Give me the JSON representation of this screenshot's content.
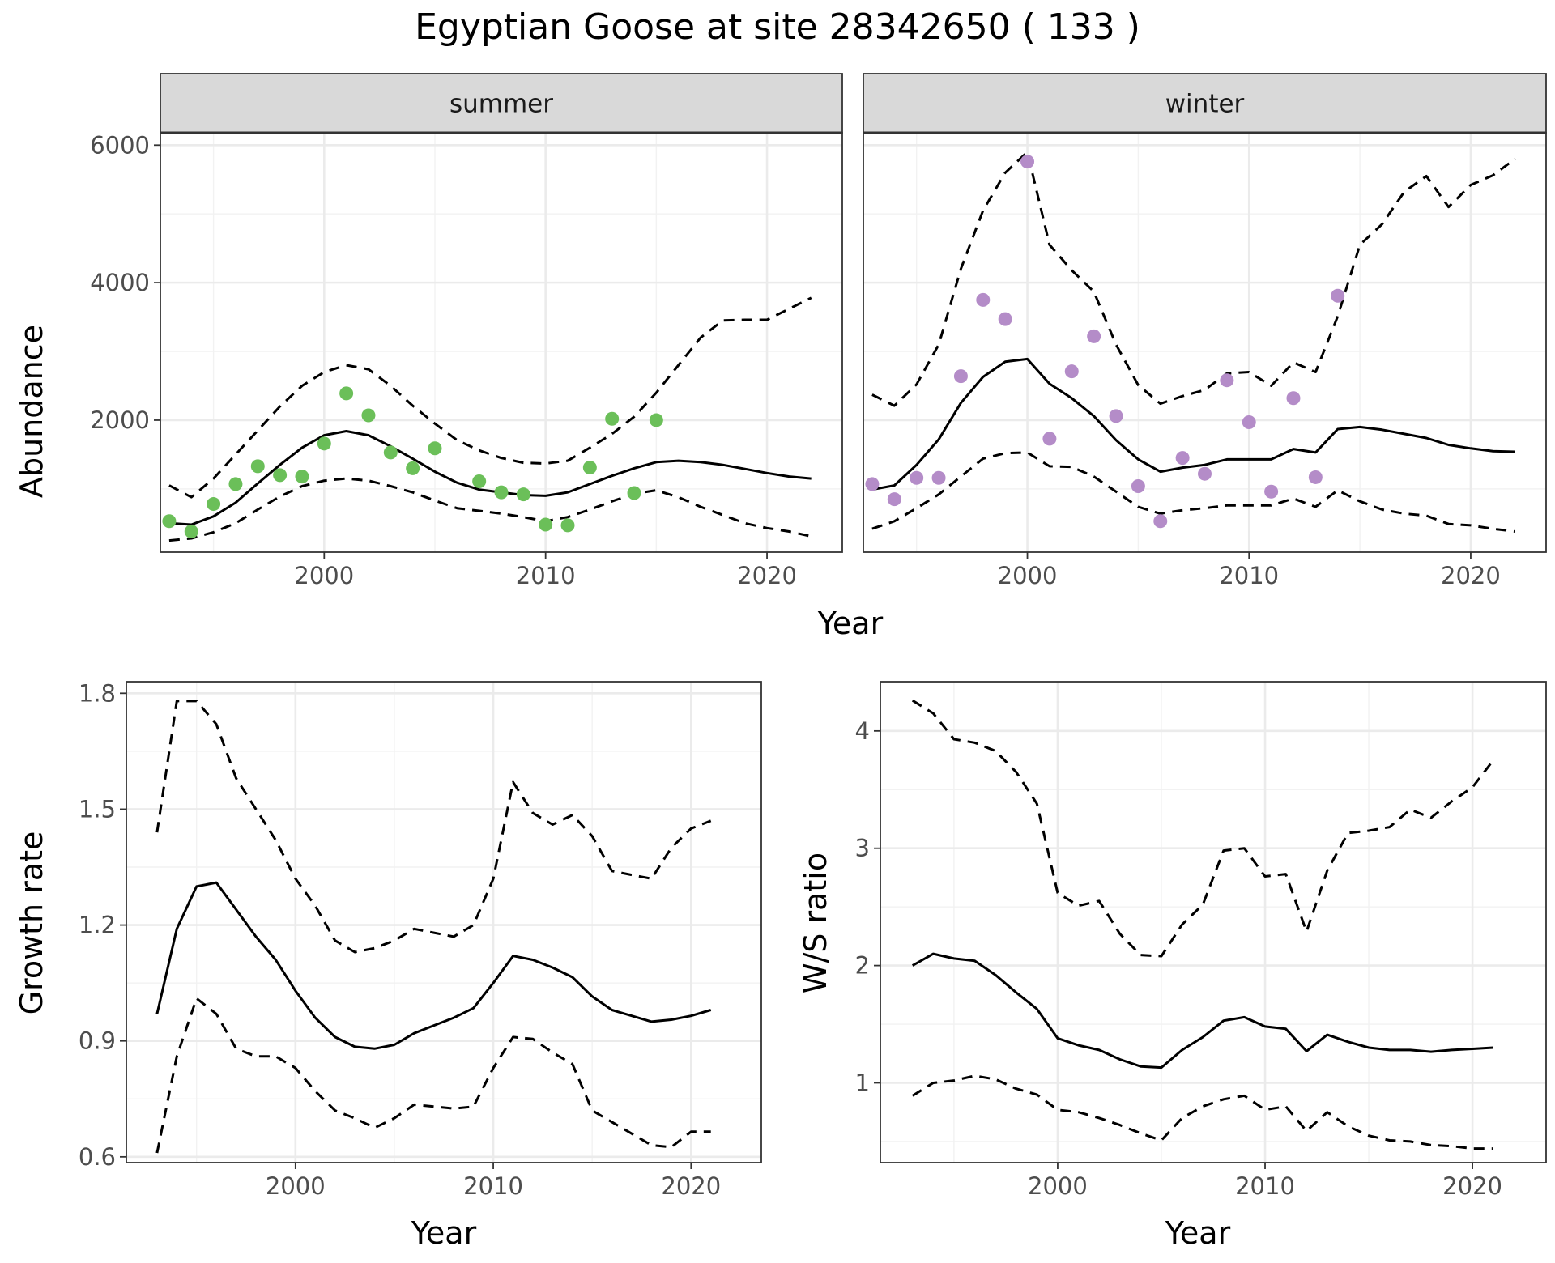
{
  "chart_data": [
    {
      "type": "line",
      "title": "Egyptian Goose at site 28342650 ( 133 )",
      "facet": "summer",
      "xlabel": "Year",
      "ylabel": "Abundance",
      "xlim": [
        1992.6,
        2023.4
      ],
      "ylim": [
        80,
        6180
      ],
      "xticks": [
        2000,
        2010,
        2020
      ],
      "yticks": [
        2000,
        4000,
        6000
      ],
      "point_color": "#6BBF59",
      "points": {
        "x": [
          1993,
          1994,
          1995,
          1996,
          1997,
          1998,
          1999,
          2000,
          2001,
          2002,
          2003,
          2004,
          2005,
          2007,
          2008,
          2009,
          2010,
          2011,
          2012,
          2013,
          2014,
          2015
        ],
        "y": [
          530,
          380,
          780,
          1070,
          1330,
          1200,
          1180,
          1660,
          2390,
          2070,
          1530,
          1300,
          1590,
          1110,
          950,
          920,
          480,
          470,
          1310,
          2020,
          940,
          2000
        ]
      },
      "series": [
        {
          "role": "estimate",
          "x": [
            1993,
            1994,
            1995,
            1996,
            1997,
            1998,
            1999,
            2000,
            2001,
            2002,
            2003,
            2004,
            2005,
            2006,
            2007,
            2008,
            2009,
            2010,
            2011,
            2012,
            2013,
            2014,
            2015,
            2016,
            2017,
            2018,
            2019,
            2020,
            2021,
            2022
          ],
          "y": [
            500,
            480,
            600,
            800,
            1080,
            1350,
            1600,
            1780,
            1840,
            1780,
            1620,
            1440,
            1250,
            1090,
            990,
            950,
            910,
            900,
            950,
            1070,
            1190,
            1300,
            1390,
            1410,
            1390,
            1350,
            1290,
            1230,
            1180,
            1150
          ]
        },
        {
          "role": "upper",
          "x": [
            1993,
            1994,
            1995,
            1996,
            1997,
            1998,
            1999,
            2000,
            2001,
            2002,
            2003,
            2004,
            2005,
            2006,
            2007,
            2008,
            2009,
            2010,
            2011,
            2012,
            2013,
            2014,
            2015,
            2016,
            2017,
            2018,
            2019,
            2020,
            2021,
            2022
          ],
          "y": [
            1050,
            880,
            1150,
            1500,
            1850,
            2200,
            2500,
            2700,
            2800,
            2740,
            2500,
            2210,
            1950,
            1710,
            1560,
            1450,
            1380,
            1370,
            1410,
            1600,
            1800,
            2050,
            2400,
            2800,
            3200,
            3450,
            3460,
            3460,
            3620,
            3780
          ]
        },
        {
          "role": "lower",
          "x": [
            1993,
            1994,
            1995,
            1996,
            1997,
            1998,
            1999,
            2000,
            2001,
            2002,
            2003,
            2004,
            2005,
            2006,
            2007,
            2008,
            2009,
            2010,
            2011,
            2012,
            2013,
            2014,
            2015,
            2016,
            2017,
            2018,
            2019,
            2020,
            2021,
            2022
          ],
          "y": [
            250,
            280,
            370,
            500,
            700,
            890,
            1040,
            1120,
            1150,
            1120,
            1040,
            950,
            830,
            720,
            680,
            640,
            590,
            530,
            590,
            700,
            820,
            930,
            980,
            880,
            740,
            620,
            500,
            430,
            380,
            310
          ]
        }
      ]
    },
    {
      "type": "line",
      "facet": "winter",
      "xlim": [
        1992.6,
        2023.4
      ],
      "ylim": [
        80,
        6180
      ],
      "xticks": [
        2000,
        2010,
        2020
      ],
      "point_color": "#B48CC8",
      "points": {
        "x": [
          1993,
          1994,
          1995,
          1996,
          1997,
          1998,
          1999,
          2000,
          2001,
          2002,
          2003,
          2004,
          2005,
          2006,
          2007,
          2008,
          2009,
          2010,
          2011,
          2012,
          2013,
          2014
        ],
        "y": [
          1070,
          850,
          1160,
          1160,
          2640,
          3750,
          3470,
          5760,
          1730,
          2710,
          3220,
          2060,
          1040,
          530,
          1450,
          1220,
          2580,
          1970,
          960,
          2320,
          1170,
          3810
        ]
      },
      "series": [
        {
          "role": "estimate",
          "x": [
            1993,
            1994,
            1995,
            1996,
            1997,
            1998,
            1999,
            2000,
            2001,
            2002,
            2003,
            2004,
            2005,
            2006,
            2007,
            2008,
            2009,
            2010,
            2011,
            2012,
            2013,
            2014,
            2015,
            2016,
            2017,
            2018,
            2019,
            2020,
            2021,
            2022
          ],
          "y": [
            990,
            1050,
            1350,
            1720,
            2250,
            2630,
            2850,
            2890,
            2530,
            2320,
            2060,
            1710,
            1430,
            1250,
            1310,
            1350,
            1430,
            1430,
            1430,
            1580,
            1530,
            1870,
            1900,
            1860,
            1800,
            1740,
            1640,
            1590,
            1550,
            1540
          ]
        },
        {
          "role": "upper",
          "x": [
            1993,
            1994,
            1995,
            1996,
            1997,
            1998,
            1999,
            2000,
            2001,
            2002,
            2003,
            2004,
            2005,
            2006,
            2007,
            2008,
            2009,
            2010,
            2011,
            2012,
            2013,
            2014,
            2015,
            2016,
            2017,
            2018,
            2019,
            2020,
            2021,
            2022
          ],
          "y": [
            2370,
            2210,
            2520,
            3100,
            4200,
            5050,
            5600,
            5900,
            4550,
            4180,
            3870,
            3100,
            2510,
            2240,
            2350,
            2440,
            2680,
            2700,
            2500,
            2840,
            2700,
            3510,
            4550,
            4850,
            5320,
            5550,
            5100,
            5420,
            5560,
            5800
          ]
        },
        {
          "role": "lower",
          "x": [
            1993,
            1994,
            1995,
            1996,
            1997,
            1998,
            1999,
            2000,
            2001,
            2002,
            2003,
            2004,
            2005,
            2006,
            2007,
            2008,
            2009,
            2010,
            2011,
            2012,
            2013,
            2014,
            2015,
            2016,
            2017,
            2018,
            2019,
            2020,
            2021,
            2022
          ],
          "y": [
            420,
            530,
            720,
            920,
            1180,
            1440,
            1520,
            1530,
            1330,
            1320,
            1180,
            960,
            740,
            640,
            690,
            720,
            760,
            760,
            760,
            860,
            740,
            980,
            820,
            700,
            640,
            610,
            490,
            470,
            420,
            380
          ]
        }
      ]
    },
    {
      "type": "line",
      "xlabel": "Year",
      "ylabel": "Growth rate",
      "xlim": [
        1991.45,
        2023.55
      ],
      "ylim": [
        0.585,
        1.83
      ],
      "xticks": [
        2000,
        2010,
        2020
      ],
      "yticks": [
        0.6,
        0.9,
        1.2,
        1.5,
        1.8
      ],
      "ytick_labels": [
        "0.6",
        "0.9",
        "1.2",
        "1.5",
        "1.8"
      ],
      "series": [
        {
          "role": "estimate",
          "x": [
            1993,
            1994,
            1995,
            1996,
            1997,
            1998,
            1999,
            2000,
            2001,
            2002,
            2003,
            2004,
            2005,
            2006,
            2007,
            2008,
            2009,
            2010,
            2011,
            2012,
            2013,
            2014,
            2015,
            2016,
            2017,
            2018,
            2019,
            2020,
            2021
          ],
          "y": [
            0.97,
            1.19,
            1.3,
            1.31,
            1.24,
            1.17,
            1.11,
            1.03,
            0.96,
            0.91,
            0.885,
            0.88,
            0.89,
            0.92,
            0.94,
            0.96,
            0.985,
            1.05,
            1.12,
            1.11,
            1.09,
            1.065,
            1.015,
            0.98,
            0.965,
            0.95,
            0.955,
            0.965,
            0.98
          ]
        },
        {
          "role": "upper",
          "x": [
            1993,
            1994,
            1995,
            1996,
            1997,
            1998,
            1999,
            2000,
            2001,
            2002,
            2003,
            2004,
            2005,
            2006,
            2007,
            2008,
            2009,
            2010,
            2011,
            2012,
            2013,
            2014,
            2015,
            2016,
            2017,
            2018,
            2019,
            2020,
            2021
          ],
          "y": [
            1.44,
            1.78,
            1.78,
            1.72,
            1.58,
            1.5,
            1.42,
            1.32,
            1.25,
            1.16,
            1.13,
            1.14,
            1.16,
            1.19,
            1.18,
            1.17,
            1.2,
            1.32,
            1.57,
            1.49,
            1.46,
            1.485,
            1.43,
            1.34,
            1.33,
            1.32,
            1.4,
            1.45,
            1.47
          ]
        },
        {
          "role": "lower",
          "x": [
            1993,
            1994,
            1995,
            1996,
            1997,
            1998,
            1999,
            2000,
            2001,
            2002,
            2003,
            2004,
            2005,
            2006,
            2007,
            2008,
            2009,
            2010,
            2011,
            2012,
            2013,
            2014,
            2015,
            2016,
            2017,
            2018,
            2019,
            2020,
            2021
          ],
          "y": [
            0.61,
            0.86,
            1.01,
            0.97,
            0.88,
            0.86,
            0.86,
            0.83,
            0.77,
            0.72,
            0.7,
            0.675,
            0.7,
            0.735,
            0.73,
            0.725,
            0.73,
            0.83,
            0.91,
            0.905,
            0.87,
            0.84,
            0.72,
            0.69,
            0.66,
            0.63,
            0.625,
            0.665,
            0.665
          ]
        }
      ]
    },
    {
      "type": "line",
      "xlabel": "Year",
      "ylabel": "W/S ratio",
      "xlim": [
        1991.45,
        2023.55
      ],
      "ylim": [
        0.32,
        4.42
      ],
      "xticks": [
        2000,
        2010,
        2020
      ],
      "yticks": [
        1,
        2,
        3,
        4
      ],
      "ytick_labels": [
        "1",
        "2",
        "3",
        "4"
      ],
      "series": [
        {
          "role": "estimate",
          "x": [
            1993,
            1994,
            1995,
            1996,
            1997,
            1998,
            1999,
            2000,
            2001,
            2002,
            2003,
            2004,
            2005,
            2006,
            2007,
            2008,
            2009,
            2010,
            2011,
            2012,
            2013,
            2014,
            2015,
            2016,
            2017,
            2018,
            2019,
            2020,
            2021
          ],
          "y": [
            2.0,
            2.1,
            2.06,
            2.04,
            1.92,
            1.77,
            1.63,
            1.38,
            1.32,
            1.28,
            1.2,
            1.14,
            1.13,
            1.28,
            1.39,
            1.53,
            1.56,
            1.48,
            1.46,
            1.27,
            1.41,
            1.35,
            1.3,
            1.28,
            1.28,
            1.265,
            1.28,
            1.29,
            1.3
          ]
        },
        {
          "role": "upper",
          "x": [
            1993,
            1994,
            1995,
            1996,
            1997,
            1998,
            1999,
            2000,
            2001,
            2002,
            2003,
            2004,
            2005,
            2006,
            2007,
            2008,
            2009,
            2010,
            2011,
            2012,
            2013,
            2014,
            2015,
            2016,
            2017,
            2018,
            2019,
            2020,
            2021
          ],
          "y": [
            4.26,
            4.15,
            3.93,
            3.9,
            3.83,
            3.65,
            3.38,
            2.62,
            2.51,
            2.55,
            2.27,
            2.09,
            2.08,
            2.35,
            2.52,
            2.98,
            3.0,
            2.76,
            2.78,
            2.29,
            2.81,
            3.13,
            3.15,
            3.18,
            3.33,
            3.26,
            3.4,
            3.52,
            3.75
          ]
        },
        {
          "role": "lower",
          "x": [
            1993,
            1994,
            1995,
            1996,
            1997,
            1998,
            1999,
            2000,
            2001,
            2002,
            2003,
            2004,
            2005,
            2006,
            2007,
            2008,
            2009,
            2010,
            2011,
            2012,
            2013,
            2014,
            2015,
            2016,
            2017,
            2018,
            2019,
            2020,
            2021
          ],
          "y": [
            0.89,
            1.0,
            1.02,
            1.06,
            1.03,
            0.95,
            0.9,
            0.77,
            0.75,
            0.7,
            0.64,
            0.57,
            0.51,
            0.7,
            0.8,
            0.86,
            0.89,
            0.77,
            0.8,
            0.59,
            0.75,
            0.63,
            0.55,
            0.51,
            0.5,
            0.47,
            0.46,
            0.44,
            0.44
          ]
        }
      ]
    }
  ]
}
